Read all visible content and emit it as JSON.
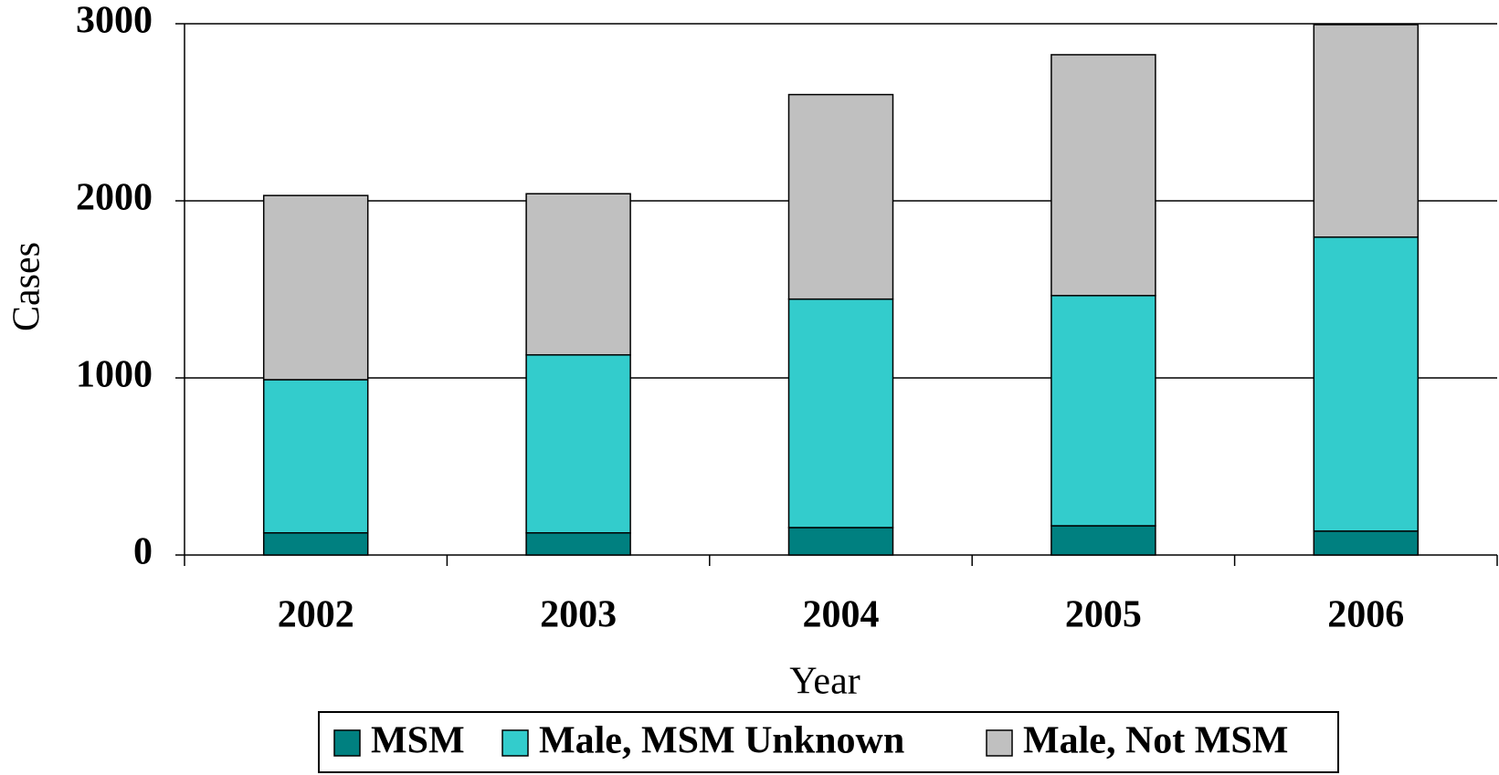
{
  "chart_data": {
    "type": "stacked_bar",
    "x_label": "Year",
    "y_label": "Cases",
    "categories": [
      "2002",
      "2003",
      "2004",
      "2005",
      "2006"
    ],
    "series": [
      {
        "name": "MSM",
        "color": "#008080",
        "values": [
          125,
          125,
          155,
          165,
          135
        ]
      },
      {
        "name": "Male, MSM Unknown",
        "color": "#33cccc",
        "values": [
          865,
          1005,
          1290,
          1300,
          1660
        ]
      },
      {
        "name": "Male, Not MSM",
        "color": "#c0c0c0",
        "values": [
          1040,
          910,
          1155,
          1360,
          1200
        ]
      }
    ],
    "ylim": [
      0,
      3000
    ],
    "yticks": [
      0,
      1000,
      2000,
      3000
    ],
    "grid": true
  }
}
